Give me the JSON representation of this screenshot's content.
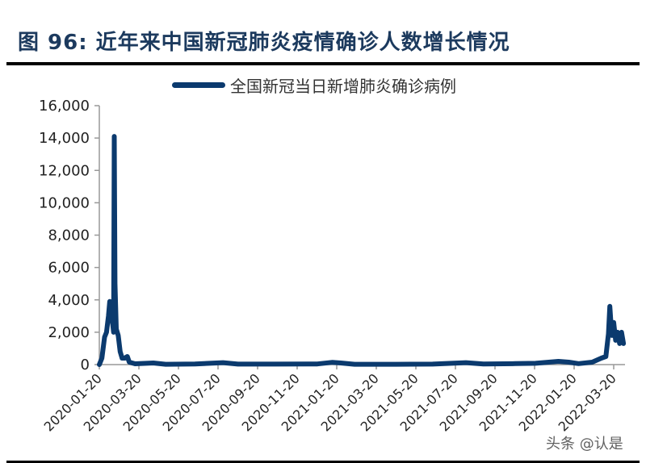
{
  "figure": {
    "title": "图 96: 近年来中国新冠肺炎疫情确诊人数增长情况",
    "watermark": "头条 @认是"
  },
  "legend": {
    "label": "全国新冠当日新增肺炎确诊病例",
    "color": "#0b3a6e"
  },
  "chart_data": {
    "type": "line",
    "title": "近年来中国新冠肺炎疫情确诊人数增长情况",
    "xlabel": "",
    "ylabel": "",
    "ylim": [
      0,
      16000
    ],
    "grid": false,
    "legend_position": "top",
    "yticks": [
      "0",
      "2,000",
      "4,000",
      "6,000",
      "8,000",
      "10,000",
      "12,000",
      "14,000",
      "16,000"
    ],
    "xticks": [
      "2020-01-20",
      "2020-03-20",
      "2020-05-20",
      "2020-07-20",
      "2020-09-20",
      "2020-11-20",
      "2021-01-20",
      "2021-03-20",
      "2021-05-20",
      "2021-07-20",
      "2021-09-20",
      "2021-11-20",
      "2022-01-20",
      "2022-03-20"
    ],
    "series": [
      {
        "name": "全国新冠当日新增肺炎确诊病例",
        "color": "#0b3a6e",
        "points": [
          [
            "2020-01-20",
            0
          ],
          [
            "2020-01-24",
            400
          ],
          [
            "2020-01-28",
            1700
          ],
          [
            "2020-01-31",
            2000
          ],
          [
            "2020-02-03",
            3000
          ],
          [
            "2020-02-05",
            3900
          ],
          [
            "2020-02-07",
            3400
          ],
          [
            "2020-02-09",
            2700
          ],
          [
            "2020-02-11",
            2000
          ],
          [
            "2020-02-12",
            14100
          ],
          [
            "2020-02-13",
            5000
          ],
          [
            "2020-02-15",
            2200
          ],
          [
            "2020-02-18",
            1800
          ],
          [
            "2020-02-21",
            800
          ],
          [
            "2020-02-24",
            400
          ],
          [
            "2020-02-28",
            400
          ],
          [
            "2020-03-03",
            500
          ],
          [
            "2020-03-06",
            150
          ],
          [
            "2020-03-15",
            50
          ],
          [
            "2020-04-12",
            100
          ],
          [
            "2020-05-01",
            20
          ],
          [
            "2020-06-15",
            40
          ],
          [
            "2020-07-28",
            120
          ],
          [
            "2020-08-20",
            30
          ],
          [
            "2020-10-15",
            30
          ],
          [
            "2020-12-20",
            40
          ],
          [
            "2021-01-12",
            140
          ],
          [
            "2021-01-25",
            100
          ],
          [
            "2021-02-15",
            20
          ],
          [
            "2021-04-20",
            20
          ],
          [
            "2021-06-15",
            30
          ],
          [
            "2021-08-05",
            120
          ],
          [
            "2021-09-01",
            40
          ],
          [
            "2021-10-20",
            60
          ],
          [
            "2021-11-20",
            80
          ],
          [
            "2021-12-25",
            200
          ],
          [
            "2022-01-10",
            150
          ],
          [
            "2022-01-25",
            60
          ],
          [
            "2022-02-15",
            150
          ],
          [
            "2022-03-01",
            400
          ],
          [
            "2022-03-08",
            500
          ],
          [
            "2022-03-12",
            1900
          ],
          [
            "2022-03-14",
            3600
          ],
          [
            "2022-03-17",
            1800
          ],
          [
            "2022-03-20",
            2600
          ],
          [
            "2022-03-23",
            1500
          ],
          [
            "2022-03-26",
            2000
          ],
          [
            "2022-03-29",
            1300
          ],
          [
            "2022-04-01",
            2000
          ],
          [
            "2022-04-04",
            1300
          ]
        ]
      }
    ]
  }
}
